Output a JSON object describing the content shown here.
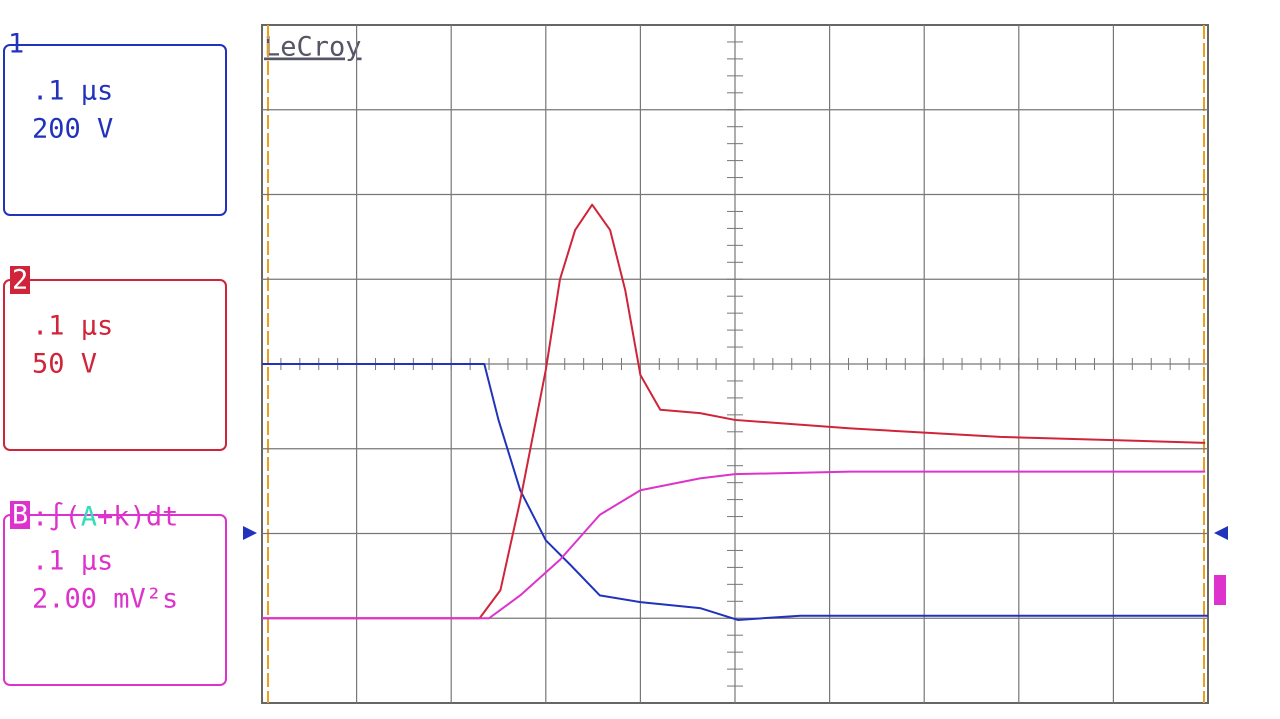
{
  "brand": "LeCroy",
  "channels": [
    {
      "label": "1",
      "timebase": ".1 μs",
      "scale": "200 V",
      "color": "#2233bb",
      "trace": {
        "x": [
          0,
          2.35,
          2.5,
          2.73,
          3.0,
          3.26,
          3.57,
          4.0,
          4.63,
          5.03,
          5.69,
          10
        ],
        "y": [
          0,
          0,
          -0.66,
          -1.49,
          -2.08,
          -2.37,
          -2.73,
          -2.81,
          -2.88,
          -3.02,
          -2.97,
          -2.97
        ]
      }
    },
    {
      "label": "2",
      "timebase": ".1 μs",
      "scale": "50 V",
      "color": "#d0243a",
      "trace": {
        "x": [
          0,
          2.3,
          2.52,
          2.73,
          3.0,
          3.15,
          3.31,
          3.49,
          3.68,
          3.84,
          4.0,
          4.21,
          4.63,
          5.0,
          6.22,
          7.8,
          9.97
        ],
        "y": [
          -3,
          -3,
          -2.67,
          -1.61,
          -0.07,
          1.0,
          1.58,
          1.88,
          1.58,
          0.87,
          -0.13,
          -0.54,
          -0.58,
          -0.66,
          -0.76,
          -0.86,
          -0.93
        ]
      }
    },
    {
      "label": "B",
      "formula": [
        ":∫(",
        "A",
        "+k)dt"
      ],
      "timebase": ".1 μs",
      "scale": "2.00 mV²s",
      "color": "#dd33cc",
      "trace": {
        "x": [
          0,
          2.4,
          2.73,
          3.15,
          3.57,
          4.0,
          4.63,
          5.0,
          6.22,
          9.97
        ],
        "y": [
          -3,
          -3,
          -2.73,
          -2.31,
          -1.78,
          -1.49,
          -1.35,
          -1.3,
          -1.27,
          -1.27
        ]
      }
    }
  ]
}
